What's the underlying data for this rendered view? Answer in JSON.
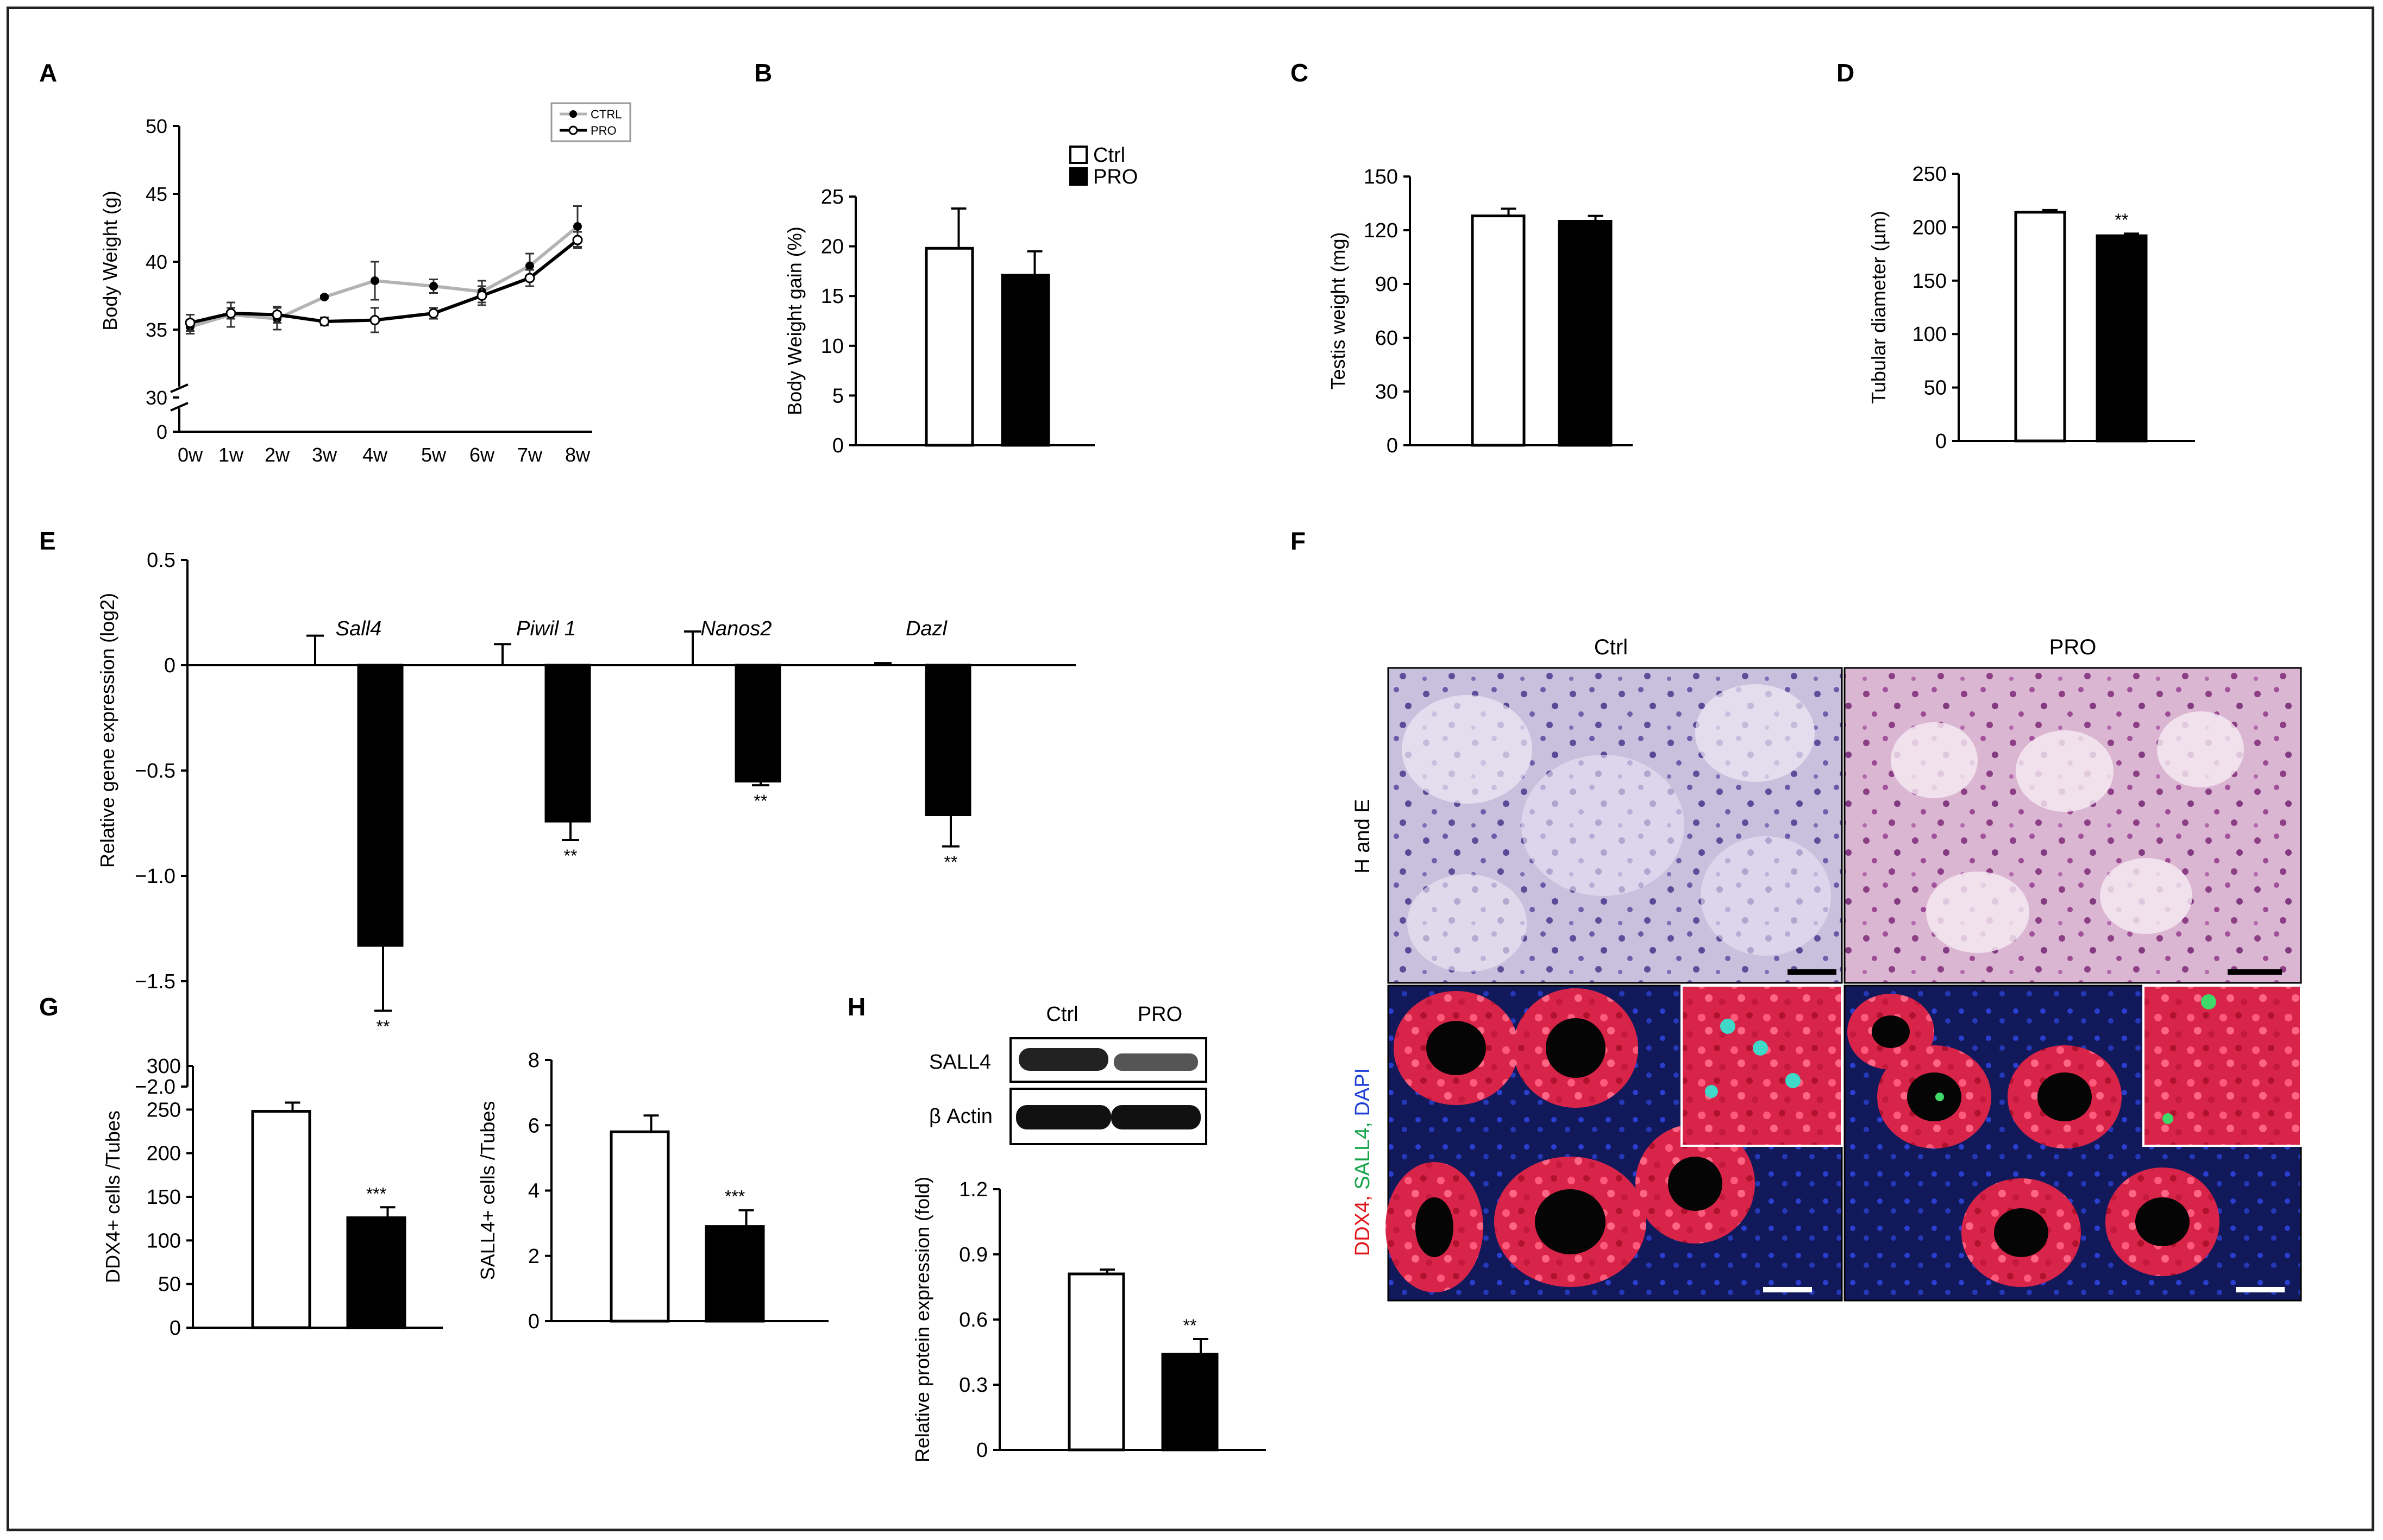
{
  "panels": {
    "A": "A",
    "B": "B",
    "C": "C",
    "D": "D",
    "E": "E",
    "F": "F",
    "G": "G",
    "H": "H"
  },
  "legend_A": {
    "ctrl": "CTRL",
    "pro": "PRO"
  },
  "legend_B": {
    "ctrl": "Ctrl",
    "pro": "PRO"
  },
  "micro": {
    "col_ctrl": "Ctrl",
    "col_pro": "PRO",
    "row_he": "H and E",
    "row_if": {
      "ddx4": "DDX4,",
      "sall4": " SALL4,",
      "dapi": " DAPI"
    },
    "colors": {
      "ddx4": "#e0161b",
      "sall4": "#16a34a",
      "dapi": "#1d3fd6"
    }
  },
  "western": {
    "lane_ctrl": "Ctrl",
    "lane_pro": "PRO",
    "row1": "SALL4",
    "row2": "β Actin"
  },
  "colors": {
    "ctrl_fill": "#ffffff",
    "pro_fill": "#000000",
    "line_ctrl": "#b3b3b3",
    "line_pro": "#000000"
  },
  "chart_data": [
    {
      "panel": "A",
      "type": "line",
      "ylabel": "Body Weight (g)",
      "xlabel": "",
      "categories": [
        "0w",
        "1w",
        "2w",
        "3w",
        "4w",
        "5w",
        "6w",
        "7w",
        "8w"
      ],
      "y_ticks": [
        "0",
        "30",
        "35",
        "40",
        "45",
        "50"
      ],
      "ylim": [
        30,
        50
      ],
      "axis_break": true,
      "series": [
        {
          "name": "CTRL",
          "color": "#b3b3b3",
          "values": [
            35.2,
            36.1,
            35.8,
            37.4,
            38.6,
            38.2,
            37.8,
            39.7,
            42.6
          ],
          "errors": [
            0.5,
            0.9,
            0.8,
            0.1,
            1.4,
            0.5,
            0.8,
            0.9,
            1.5
          ]
        },
        {
          "name": "PRO",
          "color": "#000000",
          "values": [
            35.5,
            36.2,
            36.1,
            35.6,
            35.7,
            36.2,
            37.5,
            38.8,
            41.6
          ],
          "errors": [
            0.6,
            0.4,
            0.6,
            0.3,
            0.9,
            0.4,
            0.7,
            0.6,
            0.6
          ]
        }
      ]
    },
    {
      "panel": "B",
      "type": "bar",
      "ylabel": "Body Weight gain (%)",
      "categories": [
        "Ctrl",
        "PRO"
      ],
      "values": [
        19.8,
        17.1
      ],
      "errors": [
        4.0,
        2.4
      ],
      "y_ticks": [
        "0",
        "5",
        "10",
        "15",
        "20",
        "25"
      ],
      "ylim": [
        0,
        25
      ]
    },
    {
      "panel": "C",
      "type": "bar",
      "ylabel": "Testis weight (mg)",
      "categories": [
        "Ctrl",
        "PRO"
      ],
      "values": [
        128,
        125
      ],
      "errors": [
        4,
        3
      ],
      "y_ticks": [
        "0",
        "30",
        "60",
        "90",
        "120",
        "150"
      ],
      "ylim": [
        0,
        150
      ]
    },
    {
      "panel": "D",
      "type": "bar",
      "ylabel": "Tubular diameter (µm)",
      "categories": [
        "Ctrl",
        "PRO"
      ],
      "values": [
        214,
        192
      ],
      "errors": [
        2,
        2
      ],
      "significance": [
        "",
        "**"
      ],
      "y_ticks": [
        "0",
        "50",
        "100",
        "150",
        "200",
        "250"
      ],
      "ylim": [
        0,
        250
      ]
    },
    {
      "panel": "E",
      "type": "bar",
      "ylabel": "Relative gene expression (log2)",
      "categories": [
        "Sall4",
        "Piwil 1",
        "Nanos2",
        "Dazl"
      ],
      "series": [
        {
          "name": "Ctrl",
          "values": [
            0,
            0,
            0,
            0
          ],
          "errors": [
            0.14,
            0.1,
            0.16,
            0.01
          ]
        },
        {
          "name": "PRO",
          "values": [
            -1.33,
            -0.74,
            -0.55,
            -0.71
          ],
          "errors": [
            0.31,
            0.09,
            0.02,
            0.15
          ]
        }
      ],
      "significance": [
        "**",
        "**",
        "**",
        "**"
      ],
      "y_ticks": [
        "−2.0",
        "−1.5",
        "−1.0",
        "−0.5",
        "0",
        "0.5"
      ],
      "ylim": [
        -2.0,
        0.5
      ]
    },
    {
      "panel": "G1",
      "type": "bar",
      "ylabel": "DDX4+ cells /Tubes",
      "categories": [
        "Ctrl",
        "PRO"
      ],
      "values": [
        248,
        126
      ],
      "errors": [
        10,
        12
      ],
      "significance": [
        "",
        "***"
      ],
      "y_ticks": [
        "0",
        "50",
        "100",
        "150",
        "200",
        "250",
        "300"
      ],
      "ylim": [
        0,
        300
      ]
    },
    {
      "panel": "G2",
      "type": "bar",
      "ylabel": "SALL4+ cells /Tubes",
      "categories": [
        "Ctrl",
        "PRO"
      ],
      "values": [
        5.8,
        2.9
      ],
      "errors": [
        0.5,
        0.5
      ],
      "significance": [
        "",
        "***"
      ],
      "y_ticks": [
        "0",
        "2",
        "4",
        "6",
        "8"
      ],
      "ylim": [
        0,
        8
      ]
    },
    {
      "panel": "H",
      "type": "bar",
      "ylabel": "Relative protein expression (fold)",
      "categories": [
        "Ctrl",
        "PRO"
      ],
      "values": [
        0.81,
        0.44
      ],
      "errors": [
        0.02,
        0.07
      ],
      "significance": [
        "",
        "**"
      ],
      "y_ticks": [
        "0",
        "0.3",
        "0.6",
        "0.9",
        "1.2"
      ],
      "ylim": [
        0,
        1.2
      ]
    }
  ]
}
